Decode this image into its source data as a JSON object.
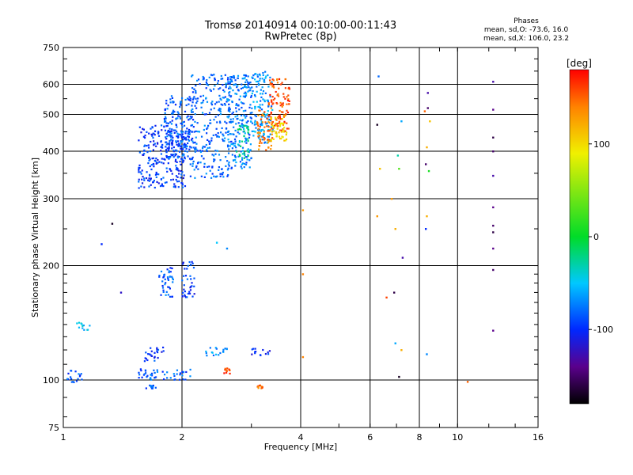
{
  "title": "Tromsø 20140914 00:10:00-00:11:43",
  "subtitle": "RwPretec (8p)",
  "stats": {
    "title": "Phases",
    "line1": "mean, sd,O: -73.6, 16.0",
    "line2": "mean, sd,X: 106.0, 23.2"
  },
  "chart_data": {
    "type": "scatter",
    "title": "Tromsø 20140914 00:10:00-00:11:43",
    "subtitle": "RwPretec (8p)",
    "xlabel": "Frequency [MHz]",
    "ylabel": "Stationary phase Virtual Height [km]",
    "xscale": "log",
    "yscale": "log",
    "xlim": [
      1,
      16
    ],
    "ylim": [
      75,
      750
    ],
    "x_ticks": [
      "1",
      "2",
      "4",
      "6",
      "8",
      "10",
      "16"
    ],
    "x_tick_values": [
      1,
      2,
      4,
      6,
      8,
      10,
      16
    ],
    "y_ticks": [
      "75",
      "100",
      "200",
      "300",
      "400",
      "500",
      "600",
      "750"
    ],
    "y_tick_values": [
      75,
      100,
      200,
      300,
      400,
      500,
      600,
      750
    ],
    "grid": true,
    "colorbar": {
      "label": "[deg]",
      "range": [
        -180,
        180
      ],
      "ticks": [
        "100",
        "0",
        "-100"
      ],
      "tick_values": [
        100,
        0,
        -100
      ]
    },
    "clusters": [
      {
        "f": [
          1.55,
          2.05
        ],
        "h": [
          320,
          470
        ],
        "phase": -95
      },
      {
        "f": [
          1.8,
          2.15
        ],
        "h": [
          380,
          560
        ],
        "phase": -85
      },
      {
        "f": [
          2.1,
          2.7
        ],
        "h": [
          340,
          640
        ],
        "phase": -80
      },
      {
        "f": [
          2.6,
          3.0
        ],
        "h": [
          360,
          640
        ],
        "phase": -75
      },
      {
        "f": [
          2.75,
          2.95
        ],
        "h": [
          380,
          470
        ],
        "phase": -25
      },
      {
        "f": [
          3.0,
          3.4
        ],
        "h": [
          420,
          650
        ],
        "phase": -65
      },
      {
        "f": [
          3.1,
          3.4
        ],
        "h": [
          400,
          520
        ],
        "phase": 140
      },
      {
        "f": [
          3.3,
          3.75
        ],
        "h": [
          450,
          620
        ],
        "phase": 155
      },
      {
        "f": [
          3.35,
          3.7
        ],
        "h": [
          420,
          500
        ],
        "phase": 100
      },
      {
        "f": [
          2.0,
          2.15
        ],
        "h": [
          165,
          205
        ],
        "phase": -95
      },
      {
        "f": [
          1.75,
          1.9
        ],
        "h": [
          165,
          200
        ],
        "phase": -85
      },
      {
        "f": [
          1.55,
          2.1
        ],
        "h": [
          100,
          107
        ],
        "phase": -85
      },
      {
        "f": [
          1.6,
          1.8
        ],
        "h": [
          112,
          122
        ],
        "phase": -95
      },
      {
        "f": [
          2.3,
          2.65
        ],
        "h": [
          116,
          122
        ],
        "phase": -70
      },
      {
        "f": [
          3.0,
          3.35
        ],
        "h": [
          116,
          122
        ],
        "phase": -100
      },
      {
        "f": [
          1.02,
          1.12
        ],
        "h": [
          98,
          106
        ],
        "phase": -85
      },
      {
        "f": [
          1.08,
          1.17
        ],
        "h": [
          135,
          142
        ],
        "phase": -50
      },
      {
        "f": [
          1.62,
          1.72
        ],
        "h": [
          95,
          97
        ],
        "phase": -85
      },
      {
        "f": [
          2.55,
          2.65
        ],
        "h": [
          104,
          108
        ],
        "phase": 155
      },
      {
        "f": [
          3.1,
          3.2
        ],
        "h": [
          95,
          97
        ],
        "phase": 150
      }
    ],
    "points": [
      {
        "f": 1.33,
        "h": 258,
        "phase": -170
      },
      {
        "f": 1.25,
        "h": 228,
        "phase": -100
      },
      {
        "f": 1.4,
        "h": 170,
        "phase": -120
      },
      {
        "f": 2.45,
        "h": 230,
        "phase": -50
      },
      {
        "f": 2.6,
        "h": 222,
        "phase": -70
      },
      {
        "f": 4.05,
        "h": 190,
        "phase": 140
      },
      {
        "f": 4.05,
        "h": 280,
        "phase": 130
      },
      {
        "f": 4.05,
        "h": 115,
        "phase": 140
      },
      {
        "f": 6.25,
        "h": 470,
        "phase": -170
      },
      {
        "f": 6.3,
        "h": 630,
        "phase": -80
      },
      {
        "f": 6.35,
        "h": 360,
        "phase": 110
      },
      {
        "f": 6.25,
        "h": 270,
        "phase": 130
      },
      {
        "f": 6.6,
        "h": 165,
        "phase": 160
      },
      {
        "f": 6.8,
        "h": 300,
        "phase": 130
      },
      {
        "f": 6.95,
        "h": 250,
        "phase": 120
      },
      {
        "f": 6.9,
        "h": 170,
        "phase": -160
      },
      {
        "f": 6.95,
        "h": 125,
        "phase": -60
      },
      {
        "f": 7.05,
        "h": 390,
        "phase": -30
      },
      {
        "f": 7.1,
        "h": 360,
        "phase": 30
      },
      {
        "f": 7.2,
        "h": 480,
        "phase": -60
      },
      {
        "f": 7.25,
        "h": 210,
        "phase": -130
      },
      {
        "f": 7.2,
        "h": 120,
        "phase": 120
      },
      {
        "f": 7.1,
        "h": 102,
        "phase": -170
      },
      {
        "f": 8.25,
        "h": 510,
        "phase": 150
      },
      {
        "f": 8.4,
        "h": 570,
        "phase": -130
      },
      {
        "f": 8.4,
        "h": 520,
        "phase": -150
      },
      {
        "f": 8.5,
        "h": 480,
        "phase": 110
      },
      {
        "f": 8.35,
        "h": 410,
        "phase": 120
      },
      {
        "f": 8.3,
        "h": 370,
        "phase": -150
      },
      {
        "f": 8.45,
        "h": 355,
        "phase": 10
      },
      {
        "f": 8.35,
        "h": 270,
        "phase": 120
      },
      {
        "f": 8.3,
        "h": 250,
        "phase": -100
      },
      {
        "f": 8.35,
        "h": 117,
        "phase": -70
      },
      {
        "f": 10.6,
        "h": 99,
        "phase": 150
      },
      {
        "f": 12.3,
        "h": 610,
        "phase": -130
      },
      {
        "f": 12.3,
        "h": 515,
        "phase": -140
      },
      {
        "f": 12.3,
        "h": 435,
        "phase": -160
      },
      {
        "f": 12.3,
        "h": 400,
        "phase": -150
      },
      {
        "f": 12.3,
        "h": 345,
        "phase": -130
      },
      {
        "f": 12.3,
        "h": 285,
        "phase": -140
      },
      {
        "f": 12.3,
        "h": 255,
        "phase": -150
      },
      {
        "f": 12.3,
        "h": 245,
        "phase": -160
      },
      {
        "f": 12.3,
        "h": 222,
        "phase": -140
      },
      {
        "f": 12.3,
        "h": 195,
        "phase": -150
      },
      {
        "f": 12.3,
        "h": 135,
        "phase": -140
      }
    ]
  }
}
